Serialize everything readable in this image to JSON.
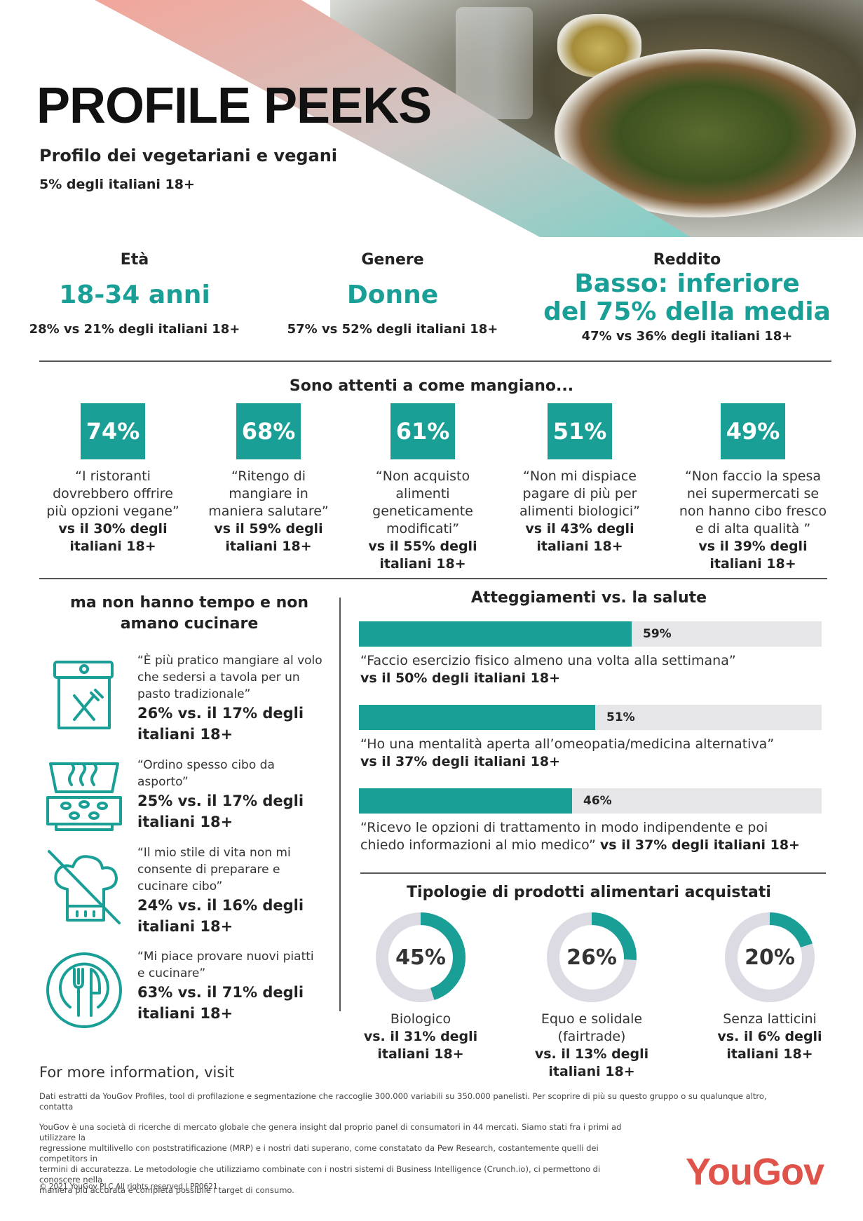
{
  "header": {
    "title": "PROFILE PEEKS",
    "subtitle": "Profilo dei vegetariani e vegani",
    "subline": "5% degli italiani 18+"
  },
  "demographics": [
    {
      "label": "Età",
      "value_lines": [
        "18-34 anni"
      ],
      "comparison": "28% vs 21% degli italiani 18+"
    },
    {
      "label": "Genere",
      "value_lines": [
        "Donne"
      ],
      "comparison": "57% vs 52% degli italiani 18+"
    },
    {
      "label": "Reddito",
      "value_lines": [
        "Basso: inferiore",
        "del 75% della media"
      ],
      "comparison": "47% vs 36% degli italiani 18+"
    }
  ],
  "attenti": {
    "title": "Sono attenti a come mangiano...",
    "items": [
      {
        "pct": "74%",
        "quote": [
          "“I ristoranti",
          "dovrebbero offrire",
          "più opzioni vegane”"
        ],
        "vs": [
          "vs il 30% degli",
          "italiani 18+"
        ]
      },
      {
        "pct": "68%",
        "quote": [
          "“Ritengo di",
          "mangiare in",
          "maniera salutare”"
        ],
        "vs": [
          "vs il 59% degli",
          "italiani 18+"
        ]
      },
      {
        "pct": "61%",
        "quote": [
          "“Non acquisto",
          "alimenti",
          "geneticamente",
          "modificati”"
        ],
        "vs": [
          "vs il 55% degli",
          "italiani 18+"
        ]
      },
      {
        "pct": "51%",
        "quote": [
          "“Non mi dispiace",
          "pagare di più per",
          "alimenti biologici”"
        ],
        "vs": [
          "vs il 43% degli",
          "italiani 18+"
        ]
      },
      {
        "pct": "49%",
        "quote": [
          "“Non faccio la spesa",
          "nei supermercati se",
          "non hanno cibo fresco",
          "e di alta qualità ”"
        ],
        "vs": [
          "vs il 39% degli",
          "italiani 18+"
        ]
      }
    ]
  },
  "cooking": {
    "title_lines": [
      "ma non hanno tempo e non",
      "amano cucinare"
    ],
    "items": [
      {
        "icon": "takeaway-bag-fork-knife-icon",
        "quote": [
          "“È più pratico mangiare al volo",
          "che sedersi a tavola per un",
          "pasto tradizionale”"
        ],
        "vs": [
          "26% vs. il 17% degli",
          "italiani 18+"
        ]
      },
      {
        "icon": "pizza-box-icon",
        "quote": [
          "“Ordino spesso cibo da",
          "asporto”"
        ],
        "vs": [
          "25% vs. il 17% degli",
          "italiani 18+"
        ]
      },
      {
        "icon": "no-chef-hat-icon",
        "quote": [
          "“Il mio stile di vita non mi",
          "consente di preparare e",
          "cucinare cibo”"
        ],
        "vs": [
          "24% vs. il 16% degli",
          "italiani 18+"
        ]
      },
      {
        "icon": "plate-fork-knife-icon",
        "quote": [
          "“Mi piace provare nuovi piatti",
          "e cucinare”"
        ],
        "vs": [
          "63% vs. il 71% degli",
          "italiani 18+"
        ]
      }
    ]
  },
  "health": {
    "title": "Atteggiamenti vs. la salute",
    "items": [
      {
        "value": 59,
        "label": "59%",
        "text_lines": [
          "“Faccio esercizio fisico almeno una volta alla settimana”"
        ],
        "vs": "vs il 50% degli italiani 18+",
        "vs_inline": false
      },
      {
        "value": 51,
        "label": "51%",
        "text_lines": [
          "“Ho una mentalità aperta all’omeopatia/medicina alternativa”"
        ],
        "vs": "vs il 37% degli italiani 18+",
        "vs_inline": false
      },
      {
        "value": 46,
        "label": "46%",
        "text_lines": [
          "“Ricevo le opzioni di trattamento in modo indipendente e poi",
          "chiedo informazioni al mio medico”"
        ],
        "vs": "vs il 37% degli italiani 18+",
        "vs_inline": true
      }
    ]
  },
  "products": {
    "title": "Tipologie di prodotti alimentari acquistati",
    "items": [
      {
        "value": 45,
        "label": "45%",
        "name": "Biologico",
        "vs": [
          "vs. il 31% degli",
          "italiani 18+"
        ]
      },
      {
        "value": 26,
        "label": "26%",
        "name": "Equo e solidale (fairtrade)",
        "vs": [
          "vs. il 13% degli",
          "italiani 18+"
        ]
      },
      {
        "value": 20,
        "label": "20%",
        "name": "Senza latticini",
        "vs": [
          "vs. il 6% degli",
          "italiani 18+"
        ]
      }
    ]
  },
  "footer": {
    "more_prefix": "For more information, visit",
    "more_url": "",
    "fine1": [
      "Dati estratti da YouGov Profiles, tool di profilazione e segmentazione che raccoglie 300.000 variabili su 350.000 panelisti. Per scoprire di più su questo gruppo o su qualunque altro,",
      "contatta"
    ],
    "fine2": [
      "YouGov è una società di ricerche di mercato globale che genera insight dal proprio panel di consumatori in 44 mercati. Siamo stati fra i primi ad utilizzare la",
      "regressione multilivello con poststratificazione (MRP) e i nostri dati superano, come constatato da Pew Research, costantemente quelli dei competitors in",
      "termini di accuratezza. Le metodologie che utilizziamo combinate con i nostri sistemi di Business Intelligence (Crunch.io), ci permettono di conoscere nella",
      "maniera più accurata e completa possibile i target di consumo."
    ],
    "copyright": "© 2021 YouGov PLC All rights reserved | PP0621",
    "logo": "YouGov"
  },
  "colors": {
    "accent": "#1a9f97",
    "track": "#e6e6e8",
    "donut_track": "#dcdbe4",
    "logo": "#e0534a",
    "gradient_start": "#f3a69a"
  }
}
